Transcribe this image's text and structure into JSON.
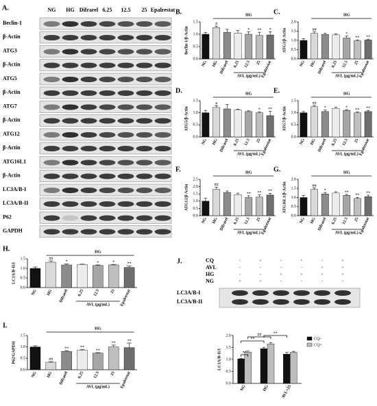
{
  "blot_a": {
    "panel": "A.",
    "lanes": [
      "NG",
      "HG",
      "Difrarel",
      "6.25",
      "12.5",
      "25",
      "Epalrestat"
    ],
    "rows": [
      "Beclin-1",
      "β-Actin",
      "ATG3",
      "β-Actin",
      "ATG5",
      "β-Actin",
      "ATG7",
      "β-Actin",
      "ATG12",
      "β-Actin",
      "ATG16L1",
      "β-Actin",
      "LC3A/B-I",
      "LC3A/B-II",
      "P62",
      "GAPDH"
    ]
  },
  "blot_j": {
    "panel": "J.",
    "conditions": [
      {
        "name": "CQ",
        "signs": [
          "-",
          "+",
          "-",
          "+",
          "-",
          "+"
        ]
      },
      {
        "name": "AVL",
        "signs": [
          "-",
          "-",
          "-",
          "-",
          "+",
          "+"
        ]
      },
      {
        "name": "HG",
        "signs": [
          "-",
          "-",
          "+",
          "+",
          "+",
          "+"
        ]
      },
      {
        "name": "NG",
        "signs": [
          "+",
          "+",
          "-",
          "-",
          "-",
          "-"
        ]
      }
    ],
    "bands": [
      "LC3A/B-I",
      "LC3A/B-II"
    ]
  },
  "chart_data": [
    {
      "type": "bar",
      "panel": "B.",
      "y_label": "Beclin-1/β-Actin",
      "bracket_label": "HG",
      "group_label": "AVL (μg/mL)",
      "categories": [
        "NG",
        "HG",
        "Difrarel",
        "6.25",
        "12.5",
        "25",
        "Epalrestat"
      ],
      "values": [
        1.0,
        1.27,
        1.08,
        1.05,
        1.0,
        0.95,
        0.97
      ],
      "errors": [
        0.07,
        0.06,
        0.12,
        0.1,
        0.1,
        0.13,
        0.13
      ],
      "annotations": [
        null,
        "#",
        null,
        null,
        "*",
        "**",
        "*"
      ],
      "colors": [
        "#111111",
        "#d9d9d9",
        "#8c8c8c",
        "#ececec",
        "#a6a6a6",
        "#bfbfbf",
        "#6e6e6e"
      ],
      "ylim": [
        0,
        1.5
      ],
      "yticks": [
        {
          "value": 0,
          "label": "0.0"
        },
        {
          "value": 0.5,
          "label": "0.5"
        },
        {
          "value": 1,
          "label": "1.0"
        },
        {
          "value": 1.5,
          "label": "1.5"
        }
      ]
    },
    {
      "type": "bar",
      "panel": "C.",
      "y_label": "ATG3/β-Actin",
      "bracket_label": "HG",
      "group_label": "AVL (μg/mL)",
      "categories": [
        "NG",
        "HG",
        "Difrarel",
        "6.25",
        "12.5",
        "25",
        "Epalrestat"
      ],
      "values": [
        1.0,
        1.38,
        1.32,
        1.3,
        1.13,
        0.98,
        1.02
      ],
      "errors": [
        0.1,
        0.08,
        0.07,
        0.06,
        0.1,
        0.05,
        0.05
      ],
      "annotations": [
        null,
        "##",
        null,
        null,
        "*",
        "**",
        "**"
      ],
      "colors": [
        "#111111",
        "#d9d9d9",
        "#8c8c8c",
        "#ececec",
        "#a6a6a6",
        "#bfbfbf",
        "#6e6e6e"
      ],
      "ylim": [
        0,
        2
      ],
      "yticks": [
        {
          "value": 0,
          "label": "0.0"
        },
        {
          "value": 0.5,
          "label": "0.5"
        },
        {
          "value": 1,
          "label": "1.0"
        },
        {
          "value": 1.5,
          "label": "1.5"
        },
        {
          "value": 2,
          "label": "2.0"
        }
      ]
    },
    {
      "type": "bar",
      "panel": "D.",
      "y_label": "ATG5/β-Actin",
      "bracket_label": "HG",
      "group_label": "AVL (μg/mL)",
      "categories": [
        "NG",
        "HG",
        "Difrarel",
        "6.25",
        "12.5",
        "25",
        "Epalrestat"
      ],
      "values": [
        1.0,
        1.22,
        1.16,
        1.12,
        1.05,
        1.0,
        0.88
      ],
      "errors": [
        0.1,
        0.07,
        0.18,
        0.03,
        0.03,
        0.04,
        0.18
      ],
      "annotations": [
        null,
        "#",
        null,
        null,
        null,
        "*",
        "**"
      ],
      "colors": [
        "#111111",
        "#d9d9d9",
        "#8c8c8c",
        "#ececec",
        "#a6a6a6",
        "#bfbfbf",
        "#6e6e6e"
      ],
      "ylim": [
        0,
        1.5
      ],
      "yticks": [
        {
          "value": 0,
          "label": "0.0"
        },
        {
          "value": 0.5,
          "label": "0.5"
        },
        {
          "value": 1,
          "label": "1.0"
        },
        {
          "value": 1.5,
          "label": "1.5"
        }
      ]
    },
    {
      "type": "bar",
      "panel": "E.",
      "y_label": "ATG7/β-Actin",
      "bracket_label": "HG",
      "group_label": "AVL (μg/mL)",
      "categories": [
        "NG",
        "HG",
        "Difrarel",
        "6.25",
        "12.5",
        "25",
        "Epalrestat"
      ],
      "values": [
        1.0,
        1.25,
        1.05,
        1.18,
        1.1,
        1.0,
        1.05
      ],
      "errors": [
        0.05,
        0.05,
        0.06,
        0.05,
        0.03,
        0.03,
        0.05
      ],
      "annotations": [
        null,
        "##",
        "*",
        null,
        "*",
        "**",
        "**"
      ],
      "colors": [
        "#111111",
        "#d9d9d9",
        "#8c8c8c",
        "#ececec",
        "#a6a6a6",
        "#bfbfbf",
        "#6e6e6e"
      ],
      "ylim": [
        0,
        1.5
      ],
      "yticks": [
        {
          "value": 0,
          "label": "0.0"
        },
        {
          "value": 0.5,
          "label": "0.5"
        },
        {
          "value": 1,
          "label": "1.0"
        },
        {
          "value": 1.5,
          "label": "1.5"
        }
      ]
    },
    {
      "type": "bar",
      "panel": "F.",
      "y_label": "ATG12/β-Actin",
      "bracket_label": "HG",
      "group_label": "AVL (μg/mL)",
      "categories": [
        "NG",
        "HG",
        "Difrarel",
        "6.25",
        "12.5",
        "25",
        "Epalrestat"
      ],
      "values": [
        1.0,
        1.82,
        1.6,
        1.45,
        1.25,
        1.28,
        1.42
      ],
      "errors": [
        0.2,
        0.15,
        0.1,
        0.1,
        0.12,
        0.15,
        0.12
      ],
      "annotations": [
        null,
        "##",
        null,
        null,
        "**",
        "**",
        "**"
      ],
      "colors": [
        "#111111",
        "#d9d9d9",
        "#8c8c8c",
        "#ececec",
        "#a6a6a6",
        "#bfbfbf",
        "#6e6e6e"
      ],
      "ylim": [
        0,
        2.5
      ],
      "yticks": [
        {
          "value": 0,
          "label": "0.0"
        },
        {
          "value": 0.5,
          "label": "0.5"
        },
        {
          "value": 1,
          "label": "1.0"
        },
        {
          "value": 1.5,
          "label": "1.5"
        },
        {
          "value": 2,
          "label": "2.0"
        },
        {
          "value": 2.5,
          "label": "2.5"
        }
      ]
    },
    {
      "type": "bar",
      "panel": "G.",
      "y_label": "ATG16L1/β-Actin",
      "bracket_label": "HG",
      "group_label": "AVL (μg/mL)",
      "categories": [
        "NG",
        "HG",
        "Difrarel",
        "6.25",
        "12.5",
        "25",
        "Epalrestat"
      ],
      "values": [
        1.0,
        1.45,
        1.2,
        1.25,
        1.12,
        0.95,
        1.05
      ],
      "errors": [
        0.12,
        0.08,
        0.08,
        0.07,
        0.05,
        0.06,
        0.08
      ],
      "annotations": [
        null,
        "##",
        "*",
        null,
        "**",
        "**",
        "**"
      ],
      "colors": [
        "#111111",
        "#d9d9d9",
        "#8c8c8c",
        "#ececec",
        "#a6a6a6",
        "#bfbfbf",
        "#6e6e6e"
      ],
      "ylim": [
        0,
        2
      ],
      "yticks": [
        {
          "value": 0,
          "label": "0.0"
        },
        {
          "value": 0.5,
          "label": "0.5"
        },
        {
          "value": 1,
          "label": "1.0"
        },
        {
          "value": 1.5,
          "label": "1.5"
        },
        {
          "value": 2,
          "label": "2.0"
        }
      ]
    },
    {
      "type": "bar",
      "panel": "H.",
      "y_label": "LC3A/B-II/I",
      "bracket_label": "HG",
      "group_label": "AVL (μg/mL)",
      "categories": [
        "NG",
        "HG",
        "Difrarel",
        "6.25",
        "12.5",
        "25",
        "Epalrestat"
      ],
      "values": [
        1.0,
        1.32,
        1.18,
        1.2,
        1.15,
        1.18,
        1.05
      ],
      "errors": [
        0.07,
        0.07,
        0.06,
        0.02,
        0.03,
        0.03,
        0.08
      ],
      "annotations": [
        null,
        "##",
        "*",
        null,
        "*",
        "*",
        "**"
      ],
      "colors": [
        "#111111",
        "#d9d9d9",
        "#8c8c8c",
        "#ececec",
        "#a6a6a6",
        "#bfbfbf",
        "#6e6e6e"
      ],
      "ylim": [
        0,
        1.5
      ],
      "yticks": [
        {
          "value": 0,
          "label": "0.0"
        },
        {
          "value": 0.5,
          "label": "0.5"
        },
        {
          "value": 1,
          "label": "1.0"
        },
        {
          "value": 1.5,
          "label": "1.5"
        }
      ]
    },
    {
      "type": "bar",
      "panel": "I.",
      "y_label": "P62/GAPDH",
      "bracket_label": "HG",
      "group_label": "AVL (μg/mL)",
      "categories": [
        "NG",
        "HG",
        "Difrarel",
        "6.25",
        "12.5",
        "25",
        "Epalrestat"
      ],
      "values": [
        1.0,
        0.33,
        0.8,
        0.85,
        0.73,
        1.0,
        0.97
      ],
      "errors": [
        0.05,
        0.02,
        0.04,
        0.03,
        0.02,
        0.08,
        0.2
      ],
      "annotations": [
        null,
        "##",
        "**",
        "**",
        "**",
        "**",
        "**"
      ],
      "colors": [
        "#111111",
        "#d9d9d9",
        "#8c8c8c",
        "#ececec",
        "#a6a6a6",
        "#bfbfbf",
        "#6e6e6e"
      ],
      "ylim": [
        0,
        1.5
      ],
      "yticks": [
        {
          "value": 0,
          "label": "0.0"
        },
        {
          "value": 0.5,
          "label": "0.5"
        },
        {
          "value": 1,
          "label": "1.0"
        },
        {
          "value": 1.5,
          "label": "1.5"
        }
      ]
    },
    {
      "type": "grouped_bar",
      "y_label": "LC3A/B-II/I",
      "categories": [
        "NG",
        "HG",
        "AVL+25"
      ],
      "series": [
        {
          "name": "CQ-",
          "color": "#111111",
          "values": [
            1.02,
            1.45,
            1.22
          ],
          "errors": [
            0.02,
            0.06,
            0.07
          ]
        },
        {
          "name": "CQ+",
          "color": "#bdbdbd",
          "values": [
            1.3,
            1.65,
            1.3
          ],
          "errors": [
            0.05,
            0.06,
            0.04
          ]
        }
      ],
      "comparison_labels": [
        "**",
        "##",
        "**",
        "**"
      ],
      "ylim": [
        0,
        2
      ],
      "yticks": [
        {
          "value": 0,
          "label": "0.0"
        },
        {
          "value": 0.5,
          "label": "0.5"
        },
        {
          "value": 1,
          "label": "1.0"
        },
        {
          "value": 1.5,
          "label": "1.5"
        },
        {
          "value": 2,
          "label": "2.0"
        }
      ]
    }
  ]
}
